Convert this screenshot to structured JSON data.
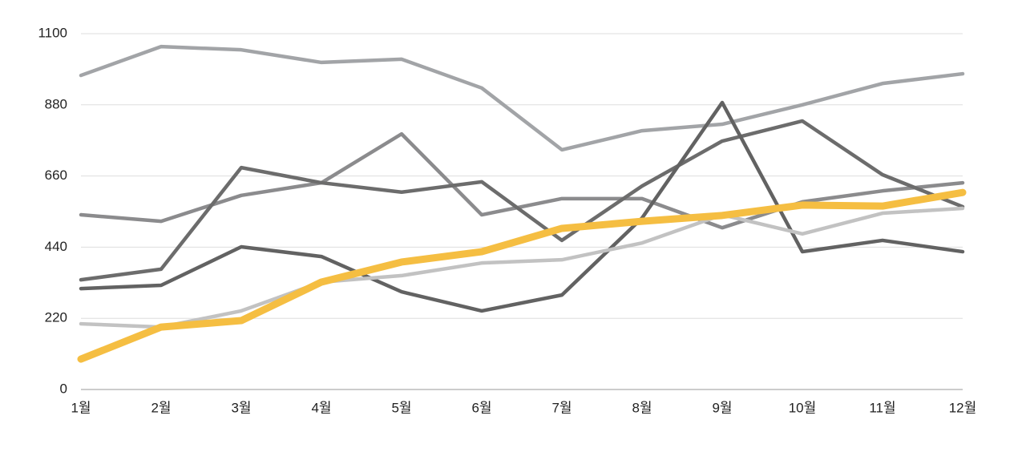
{
  "chart_data": {
    "type": "line",
    "categories": [
      "1월",
      "2월",
      "3월",
      "4월",
      "5월",
      "6월",
      "7월",
      "8월",
      "9월",
      "10월",
      "11월",
      "12월"
    ],
    "series": [
      {
        "color": "#a2a4a7",
        "values": [
          971,
          1060,
          1050,
          1011,
          1021,
          932,
          741,
          800,
          820,
          880,
          946,
          976
        ]
      },
      {
        "color": "#8b8b8d",
        "values": [
          540,
          520,
          600,
          639,
          790,
          540,
          590,
          590,
          500,
          580,
          614,
          639
        ]
      },
      {
        "color": "#6c6c6c",
        "values": [
          339,
          372,
          686,
          639,
          610,
          642,
          461,
          629,
          768,
          830,
          664,
          565
        ]
      },
      {
        "color": "#626262",
        "values": [
          312,
          322,
          441,
          411,
          302,
          243,
          292,
          530,
          887,
          426,
          461,
          426
        ]
      },
      {
        "color": "#c2c2c2",
        "values": [
          203,
          193,
          243,
          332,
          352,
          391,
          401,
          453,
          540,
          481,
          545,
          560
        ]
      },
      {
        "color": "#f5be42",
        "values": [
          94,
          193,
          213,
          332,
          394,
          426,
          498,
          520,
          538,
          570,
          567,
          609
        ]
      }
    ],
    "ylim": [
      0,
      1100
    ],
    "yticks": [
      0,
      220,
      440,
      660,
      880,
      1100
    ],
    "grid": true
  }
}
